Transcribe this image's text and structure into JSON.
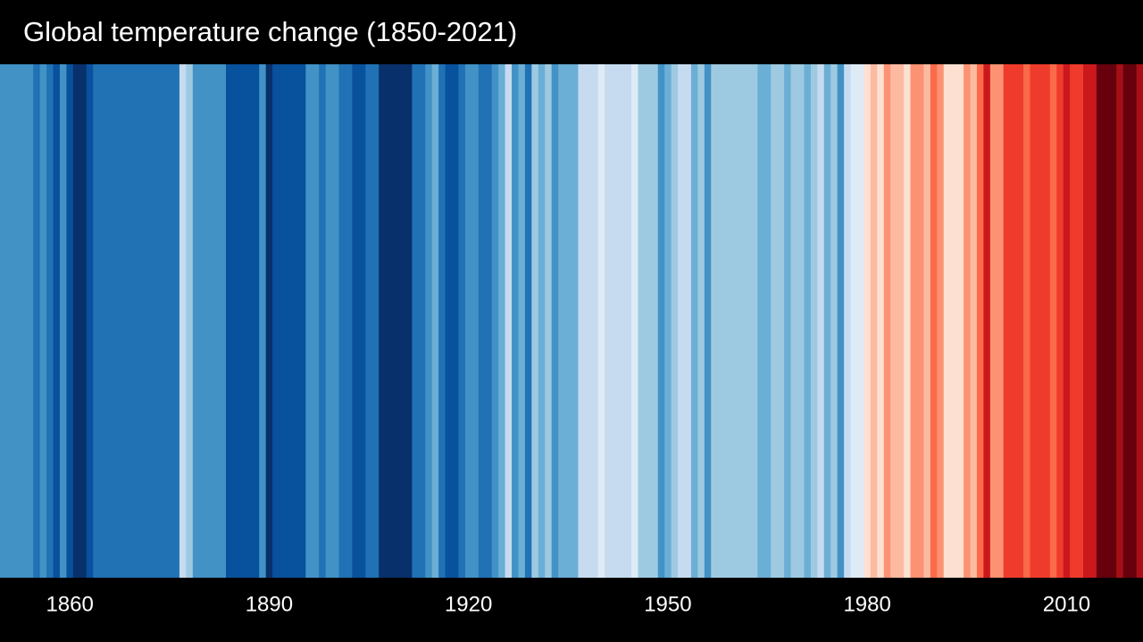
{
  "chart_data": {
    "type": "stripes",
    "title": "Global temperature change (1850-2021)",
    "x": [
      1850,
      1851,
      1852,
      1853,
      1854,
      1855,
      1856,
      1857,
      1858,
      1859,
      1860,
      1861,
      1862,
      1863,
      1864,
      1865,
      1866,
      1867,
      1868,
      1869,
      1870,
      1871,
      1872,
      1873,
      1874,
      1875,
      1876,
      1877,
      1878,
      1879,
      1880,
      1881,
      1882,
      1883,
      1884,
      1885,
      1886,
      1887,
      1888,
      1889,
      1890,
      1891,
      1892,
      1893,
      1894,
      1895,
      1896,
      1897,
      1898,
      1899,
      1900,
      1901,
      1902,
      1903,
      1904,
      1905,
      1906,
      1907,
      1908,
      1909,
      1910,
      1911,
      1912,
      1913,
      1914,
      1915,
      1916,
      1917,
      1918,
      1919,
      1920,
      1921,
      1922,
      1923,
      1924,
      1925,
      1926,
      1927,
      1928,
      1929,
      1930,
      1931,
      1932,
      1933,
      1934,
      1935,
      1936,
      1937,
      1938,
      1939,
      1940,
      1941,
      1942,
      1943,
      1944,
      1945,
      1946,
      1947,
      1948,
      1949,
      1950,
      1951,
      1952,
      1953,
      1954,
      1955,
      1956,
      1957,
      1958,
      1959,
      1960,
      1961,
      1962,
      1963,
      1964,
      1965,
      1966,
      1967,
      1968,
      1969,
      1970,
      1971,
      1972,
      1973,
      1974,
      1975,
      1976,
      1977,
      1978,
      1979,
      1980,
      1981,
      1982,
      1983,
      1984,
      1985,
      1986,
      1987,
      1988,
      1989,
      1990,
      1991,
      1992,
      1993,
      1994,
      1995,
      1996,
      1997,
      1998,
      1999,
      2000,
      2001,
      2002,
      2003,
      2004,
      2005,
      2006,
      2007,
      2008,
      2009,
      2010,
      2011,
      2012,
      2013,
      2014,
      2015,
      2016,
      2017,
      2018,
      2019,
      2020,
      2021
    ],
    "values": [
      -0.39,
      -0.39,
      -0.39,
      -0.39,
      -0.39,
      -0.48,
      -0.39,
      -0.48,
      -0.57,
      -0.39,
      -0.57,
      -0.66,
      -0.66,
      -0.57,
      -0.48,
      -0.48,
      -0.48,
      -0.48,
      -0.48,
      -0.48,
      -0.48,
      -0.48,
      -0.48,
      -0.48,
      -0.48,
      -0.48,
      -0.48,
      -0.13,
      -0.22,
      -0.39,
      -0.39,
      -0.39,
      -0.39,
      -0.39,
      -0.57,
      -0.57,
      -0.57,
      -0.57,
      -0.57,
      -0.39,
      -0.66,
      -0.57,
      -0.57,
      -0.57,
      -0.57,
      -0.57,
      -0.39,
      -0.39,
      -0.48,
      -0.39,
      -0.39,
      -0.48,
      -0.48,
      -0.57,
      -0.57,
      -0.48,
      -0.48,
      -0.66,
      -0.66,
      -0.66,
      -0.66,
      -0.66,
      -0.48,
      -0.48,
      -0.39,
      -0.31,
      -0.48,
      -0.57,
      -0.57,
      -0.48,
      -0.39,
      -0.39,
      -0.48,
      -0.48,
      -0.39,
      -0.31,
      -0.13,
      -0.39,
      -0.31,
      -0.48,
      -0.22,
      -0.31,
      -0.22,
      -0.39,
      -0.31,
      -0.31,
      -0.31,
      -0.13,
      -0.13,
      -0.13,
      -0.04,
      -0.13,
      -0.13,
      -0.13,
      -0.13,
      -0.04,
      -0.22,
      -0.22,
      -0.22,
      -0.39,
      -0.31,
      -0.22,
      -0.13,
      -0.13,
      -0.31,
      -0.22,
      -0.39,
      -0.22,
      -0.22,
      -0.22,
      -0.22,
      -0.22,
      -0.22,
      -0.22,
      -0.31,
      -0.31,
      -0.22,
      -0.22,
      -0.31,
      -0.22,
      -0.22,
      -0.31,
      -0.22,
      -0.13,
      -0.31,
      -0.22,
      -0.39,
      -0.13,
      -0.04,
      -0.04,
      0.04,
      0.13,
      0.04,
      0.22,
      0.13,
      0.13,
      0.04,
      0.22,
      0.22,
      0.13,
      0.31,
      0.22,
      0.04,
      0.04,
      0.04,
      0.22,
      0.13,
      0.31,
      0.48,
      0.22,
      0.22,
      0.39,
      0.39,
      0.39,
      0.31,
      0.39,
      0.39,
      0.39,
      0.31,
      0.39,
      0.48,
      0.39,
      0.39,
      0.48,
      0.48,
      0.66,
      0.66,
      0.66,
      0.57,
      0.66,
      0.66,
      0.57
    ],
    "xlim": [
      1849.5,
      2021.5
    ],
    "xticks": [
      1860,
      1890,
      1920,
      1950,
      1980,
      2010
    ],
    "colors": [
      "#08306b",
      "#08519c",
      "#2171b5",
      "#4292c6",
      "#6baed6",
      "#9ecae1",
      "#c6dbef",
      "#deebf7",
      "#fee0d2",
      "#fcbba1",
      "#fc9272",
      "#fb6a4a",
      "#ef3b2c",
      "#cb181d",
      "#a50f15",
      "#67000d"
    ],
    "color_range": [
      -0.7,
      0.7
    ]
  }
}
